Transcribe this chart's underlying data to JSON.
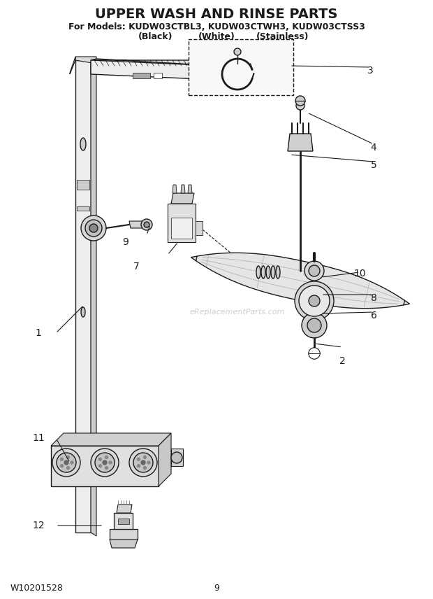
{
  "title_line1": "UPPER WASH AND RINSE PARTS",
  "title_line2": "For Models: KUDW03CTBL3, KUDW03CTWH3, KUDW03CTSS3",
  "title_line3_black": "(Black)",
  "title_line3_white": "(White)",
  "title_line3_stainless": "(Stainless)",
  "footer_left": "W10201528",
  "footer_center": "9",
  "background_color": "#ffffff",
  "title_color": "#000000",
  "watermark": "eReplacementParts.com",
  "title_fontsize": 14,
  "subtitle_fontsize": 9,
  "label_fontsize": 10,
  "footer_fontsize": 9,
  "dark": "#1a1a1a",
  "gray1": "#e0e0e0",
  "gray2": "#cccccc",
  "gray3": "#b0b0b0",
  "gray4": "#909090"
}
